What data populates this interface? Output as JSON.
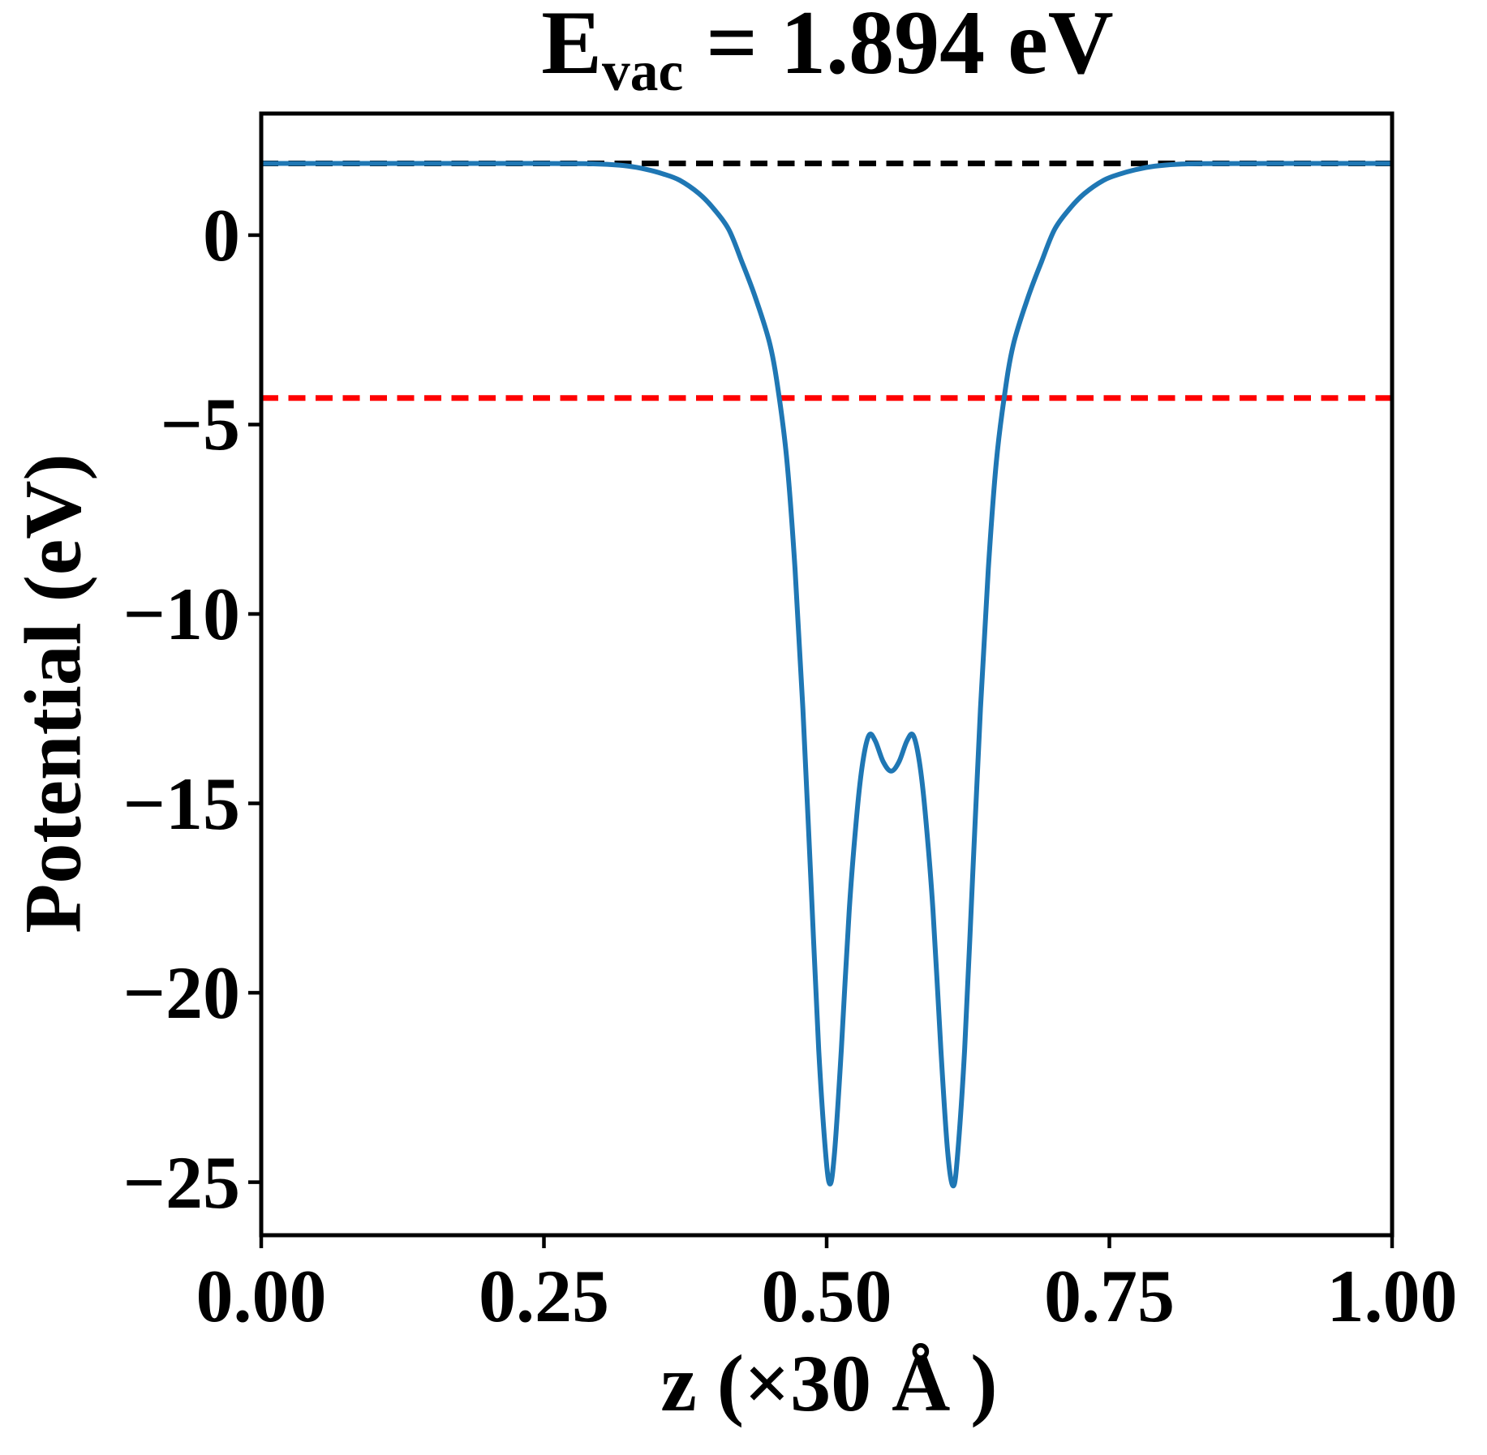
{
  "colors": {
    "background": "#ffffff",
    "axis": "#000000",
    "curve": "#1f77b4",
    "vacuum_line": "#000000",
    "fermi_line": "#ff0000"
  },
  "chart_data": {
    "type": "line",
    "title": {
      "prefix": "E",
      "subscript": "vac",
      "suffix": " = 1.894 eV"
    },
    "xlabel": "z (×30 Å )",
    "ylabel": "Potential (eV)",
    "xlim": [
      0.0,
      1.0
    ],
    "ylim": [
      -26.4,
      3.21
    ],
    "grid": false,
    "legend": "none",
    "xticks": {
      "values": [
        0.0,
        0.25,
        0.5,
        0.75,
        1.0
      ],
      "labels": [
        "0.00",
        "0.25",
        "0.50",
        "0.75",
        "1.00"
      ]
    },
    "yticks": {
      "values": [
        0,
        -5,
        -10,
        -15,
        -20,
        -25
      ],
      "labels": [
        "0",
        "−5",
        "−10",
        "−15",
        "−20",
        "−25"
      ]
    },
    "hlines": [
      {
        "name": "vacuum-level",
        "value": 1.894,
        "color": "#000000",
        "style": "dashed"
      },
      {
        "name": "fermi-level",
        "value": -4.3,
        "color": "#ff0000",
        "style": "dashed"
      }
    ],
    "series": [
      {
        "name": "planar-averaged-potential",
        "color": "#1f77b4",
        "x": [
          0.0,
          0.08,
          0.16,
          0.24,
          0.285,
          0.306,
          0.325,
          0.34,
          0.355,
          0.37,
          0.387,
          0.4,
          0.4134,
          0.425,
          0.437,
          0.45,
          0.458,
          0.465,
          0.472,
          0.479,
          0.486,
          0.493,
          0.499,
          0.503,
          0.507,
          0.513,
          0.52,
          0.527,
          0.532,
          0.5375,
          0.543,
          0.55,
          0.557,
          0.564,
          0.571,
          0.5765,
          0.582,
          0.587,
          0.594,
          0.601,
          0.607,
          0.612,
          0.616,
          0.622,
          0.629,
          0.636,
          0.643,
          0.65,
          0.657,
          0.665,
          0.678,
          0.69,
          0.7016,
          0.715,
          0.728,
          0.745,
          0.76,
          0.775,
          0.79,
          0.809,
          0.83,
          0.9,
          1.0
        ],
        "y": [
          1.894,
          1.894,
          1.894,
          1.894,
          1.888,
          1.87,
          1.82,
          1.74,
          1.62,
          1.45,
          1.1,
          0.7,
          0.15,
          -0.7,
          -1.65,
          -2.9,
          -4.28,
          -6.0,
          -8.8,
          -12.5,
          -17.0,
          -21.5,
          -24.2,
          -25.05,
          -24.2,
          -21.5,
          -17.8,
          -15.2,
          -13.9,
          -13.2,
          -13.35,
          -13.9,
          -14.15,
          -13.9,
          -13.35,
          -13.2,
          -13.9,
          -15.2,
          -17.8,
          -21.5,
          -24.2,
          -25.1,
          -24.2,
          -21.5,
          -17.0,
          -12.5,
          -8.8,
          -6.0,
          -4.28,
          -2.9,
          -1.65,
          -0.7,
          0.15,
          0.7,
          1.1,
          1.45,
          1.62,
          1.74,
          1.82,
          1.87,
          1.888,
          1.894,
          1.894
        ]
      }
    ]
  }
}
